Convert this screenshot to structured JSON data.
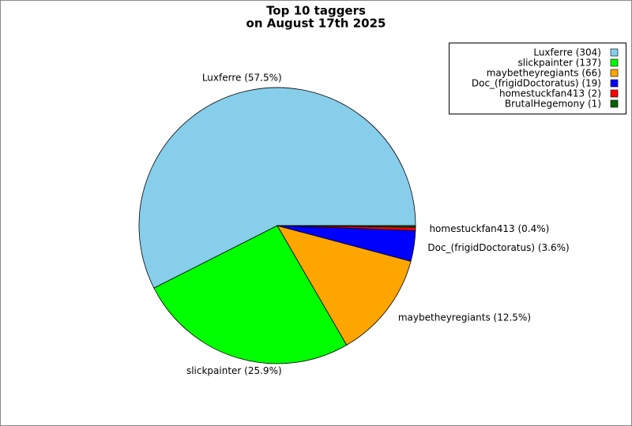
{
  "chart_data": {
    "type": "pie",
    "title": [
      "Top 10 taggers",
      "on August 17th 2025"
    ],
    "categories": [
      "Luxferre",
      "slickpainter",
      "maybetheyregiants",
      "Doc_(frigidDoctoratus)",
      "homestuckfan413",
      "BrutalHegemony"
    ],
    "values": [
      304,
      137,
      66,
      19,
      2,
      1
    ],
    "colors": [
      "#87ceeb",
      "#00ff00",
      "#ffa500",
      "#0000ff",
      "#ff0000",
      "#006400"
    ],
    "value_labels": [
      "Luxferre (57.5%)",
      "slickpainter (25.9%)",
      "maybetheyregiants (12.5%)",
      "Doc_(frigidDoctoratus) (3.6%)",
      "homestuckfan413 (0.4%)",
      null
    ],
    "legend_labels": [
      "Luxferre (304)",
      "slickpainter (137)",
      "maybetheyregiants (66)",
      "Doc_(frigidDoctoratus) (19)",
      "homestuckfan413 (2)",
      "BrutalHegemony (1)"
    ],
    "legend_position": "upper right"
  }
}
